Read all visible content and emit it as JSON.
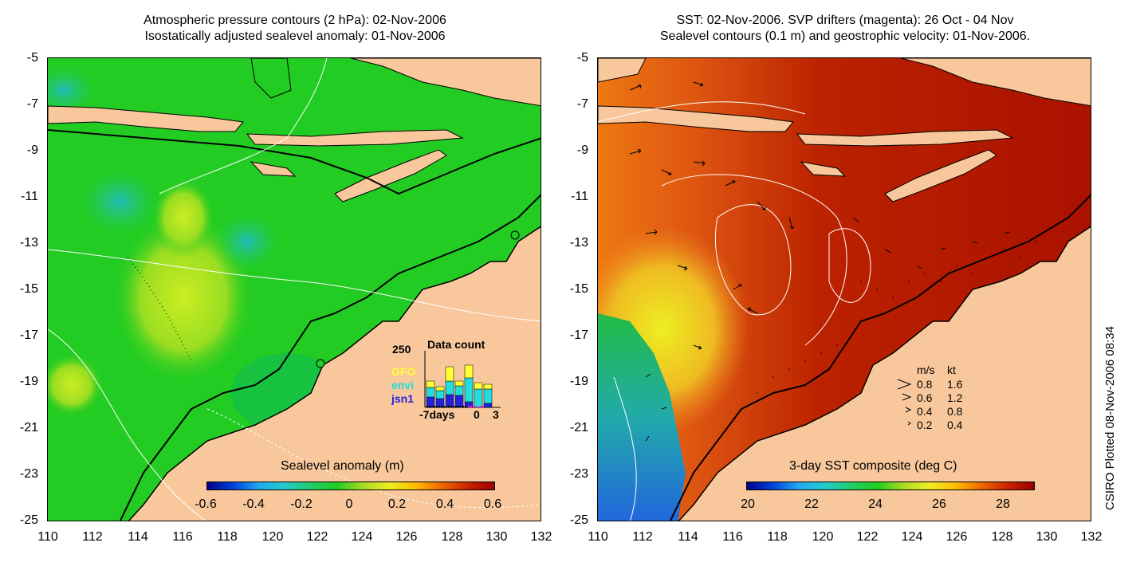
{
  "left_panel": {
    "title_line1": "Atmospheric pressure contours (2 hPa): 02-Nov-2006",
    "title_line2": "Isostatically adjusted sealevel anomaly: 01-Nov-2006",
    "colorbar_label": "Sealevel anomaly (m)",
    "colorbar_ticks": [
      "-0.6",
      "-0.4",
      "-0.2",
      "0",
      "0.2",
      "0.4",
      "0.6"
    ],
    "data_count": {
      "title": "Data count",
      "ymax_label": "250",
      "x_labels": [
        "-7days",
        "0",
        "3"
      ],
      "series": [
        {
          "name": "GFO",
          "color": "#ffff33"
        },
        {
          "name": "envi",
          "color": "#22dddd"
        },
        {
          "name": "jsn1",
          "color": "#2222dd"
        }
      ]
    }
  },
  "right_panel": {
    "title_line1": "SST: 02-Nov-2006. SVP drifters (magenta): 26 Oct - 04 Nov",
    "title_line2": "Sealevel contours (0.1 m) and geostrophic velocity: 01-Nov-2006.",
    "colorbar_label": "3-day SST composite (deg C)",
    "colorbar_ticks": [
      "20",
      "22",
      "24",
      "26",
      "28"
    ],
    "velocity_legend": {
      "header_ms": "m/s",
      "header_kt": "kt",
      "rows": [
        {
          "ms": "0.8",
          "kt": "1.6"
        },
        {
          "ms": "0.6",
          "kt": "1.2"
        },
        {
          "ms": "0.4",
          "kt": "0.8"
        },
        {
          "ms": "0.2",
          "kt": "0.4"
        }
      ]
    }
  },
  "axes": {
    "y_ticks": [
      "-5",
      "-7",
      "-9",
      "-11",
      "-13",
      "-15",
      "-17",
      "-19",
      "-21",
      "-23",
      "-25"
    ],
    "x_ticks": [
      "110",
      "112",
      "114",
      "116",
      "118",
      "120",
      "122",
      "124",
      "126",
      "128",
      "130",
      "132"
    ]
  },
  "credit": "CSIRO Plotted 08-Nov-2006 08:34",
  "colors": {
    "land": "#f8c89c",
    "sla_ocean": "#22cc22",
    "sst_ocean": "#aa1100"
  }
}
